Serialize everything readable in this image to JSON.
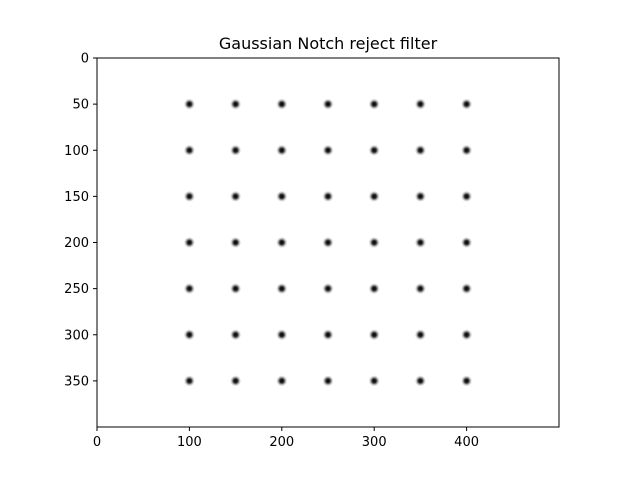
{
  "chart_data": {
    "type": "heatmap",
    "title": "Gaussian Notch reject filter",
    "xlabel": "",
    "ylabel": "",
    "image_width": 500,
    "image_height": 400,
    "xlim": [
      0,
      500
    ],
    "ylim": [
      400,
      0
    ],
    "y_axis_inverted": true,
    "xticks": [
      0,
      100,
      200,
      300,
      400
    ],
    "yticks": [
      0,
      50,
      100,
      150,
      200,
      250,
      300,
      350
    ],
    "colormap": "gray",
    "background_value": 1.0,
    "notch_value": 0.0,
    "notch_centers_x": [
      100,
      150,
      200,
      250,
      300,
      350,
      400
    ],
    "notch_centers_y": [
      50,
      100,
      150,
      200,
      250,
      300,
      350
    ],
    "grid": false,
    "legend": "none"
  }
}
